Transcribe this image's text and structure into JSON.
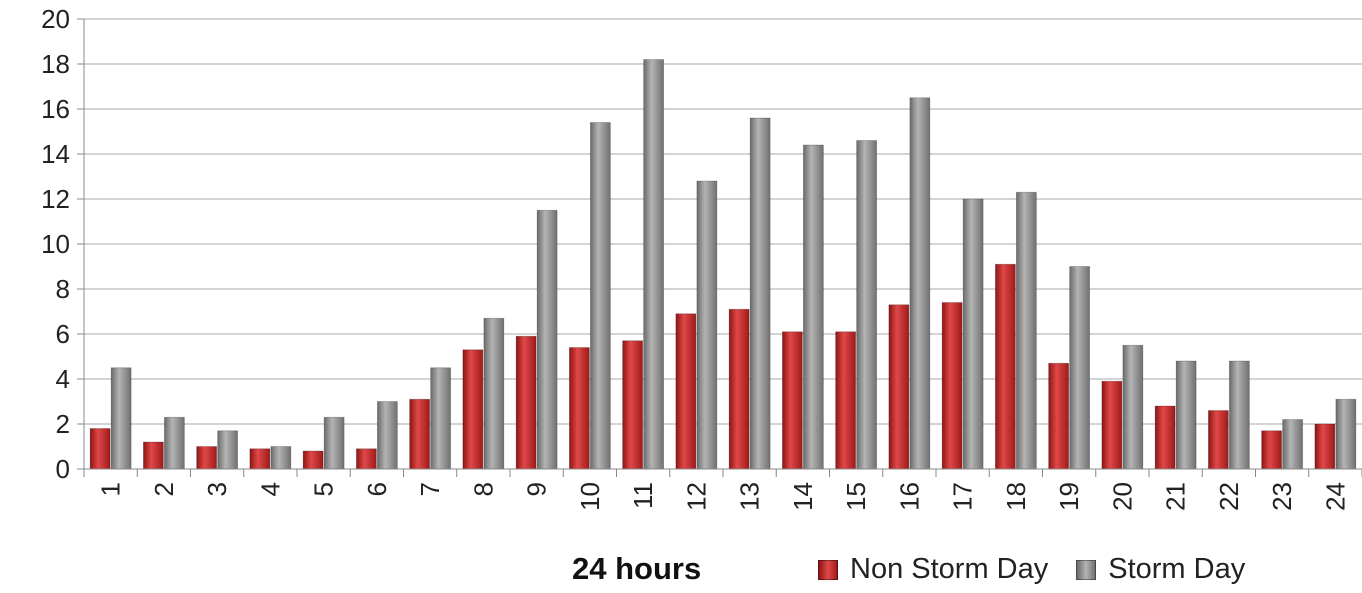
{
  "chart_data": {
    "type": "bar",
    "title": "",
    "xlabel": "24 hours",
    "ylabel": "",
    "ylim": [
      0,
      20
    ],
    "yticks": [
      0,
      2,
      4,
      6,
      8,
      10,
      12,
      14,
      16,
      18,
      20
    ],
    "grid": true,
    "legend_position": "bottom-right",
    "categories": [
      "1",
      "2",
      "3",
      "4",
      "5",
      "6",
      "7",
      "8",
      "9",
      "10",
      "11",
      "12",
      "13",
      "14",
      "15",
      "16",
      "17",
      "18",
      "19",
      "20",
      "21",
      "22",
      "23",
      "24"
    ],
    "series": [
      {
        "name": "Non Storm Day",
        "color": "#c62828",
        "values": [
          1.8,
          1.2,
          1.0,
          0.9,
          0.8,
          0.9,
          3.1,
          5.3,
          5.9,
          5.4,
          5.7,
          6.9,
          7.1,
          6.1,
          6.1,
          7.3,
          7.4,
          9.1,
          4.7,
          3.9,
          2.8,
          2.6,
          1.7,
          2.0
        ]
      },
      {
        "name": "Storm Day",
        "color": "#8c8c8c",
        "values": [
          4.5,
          2.3,
          1.7,
          1.0,
          2.3,
          3.0,
          4.5,
          6.7,
          11.5,
          15.4,
          18.2,
          12.8,
          15.6,
          14.4,
          14.6,
          16.5,
          12.0,
          12.3,
          9.0,
          5.5,
          4.8,
          4.8,
          2.2,
          3.1
        ]
      }
    ]
  }
}
